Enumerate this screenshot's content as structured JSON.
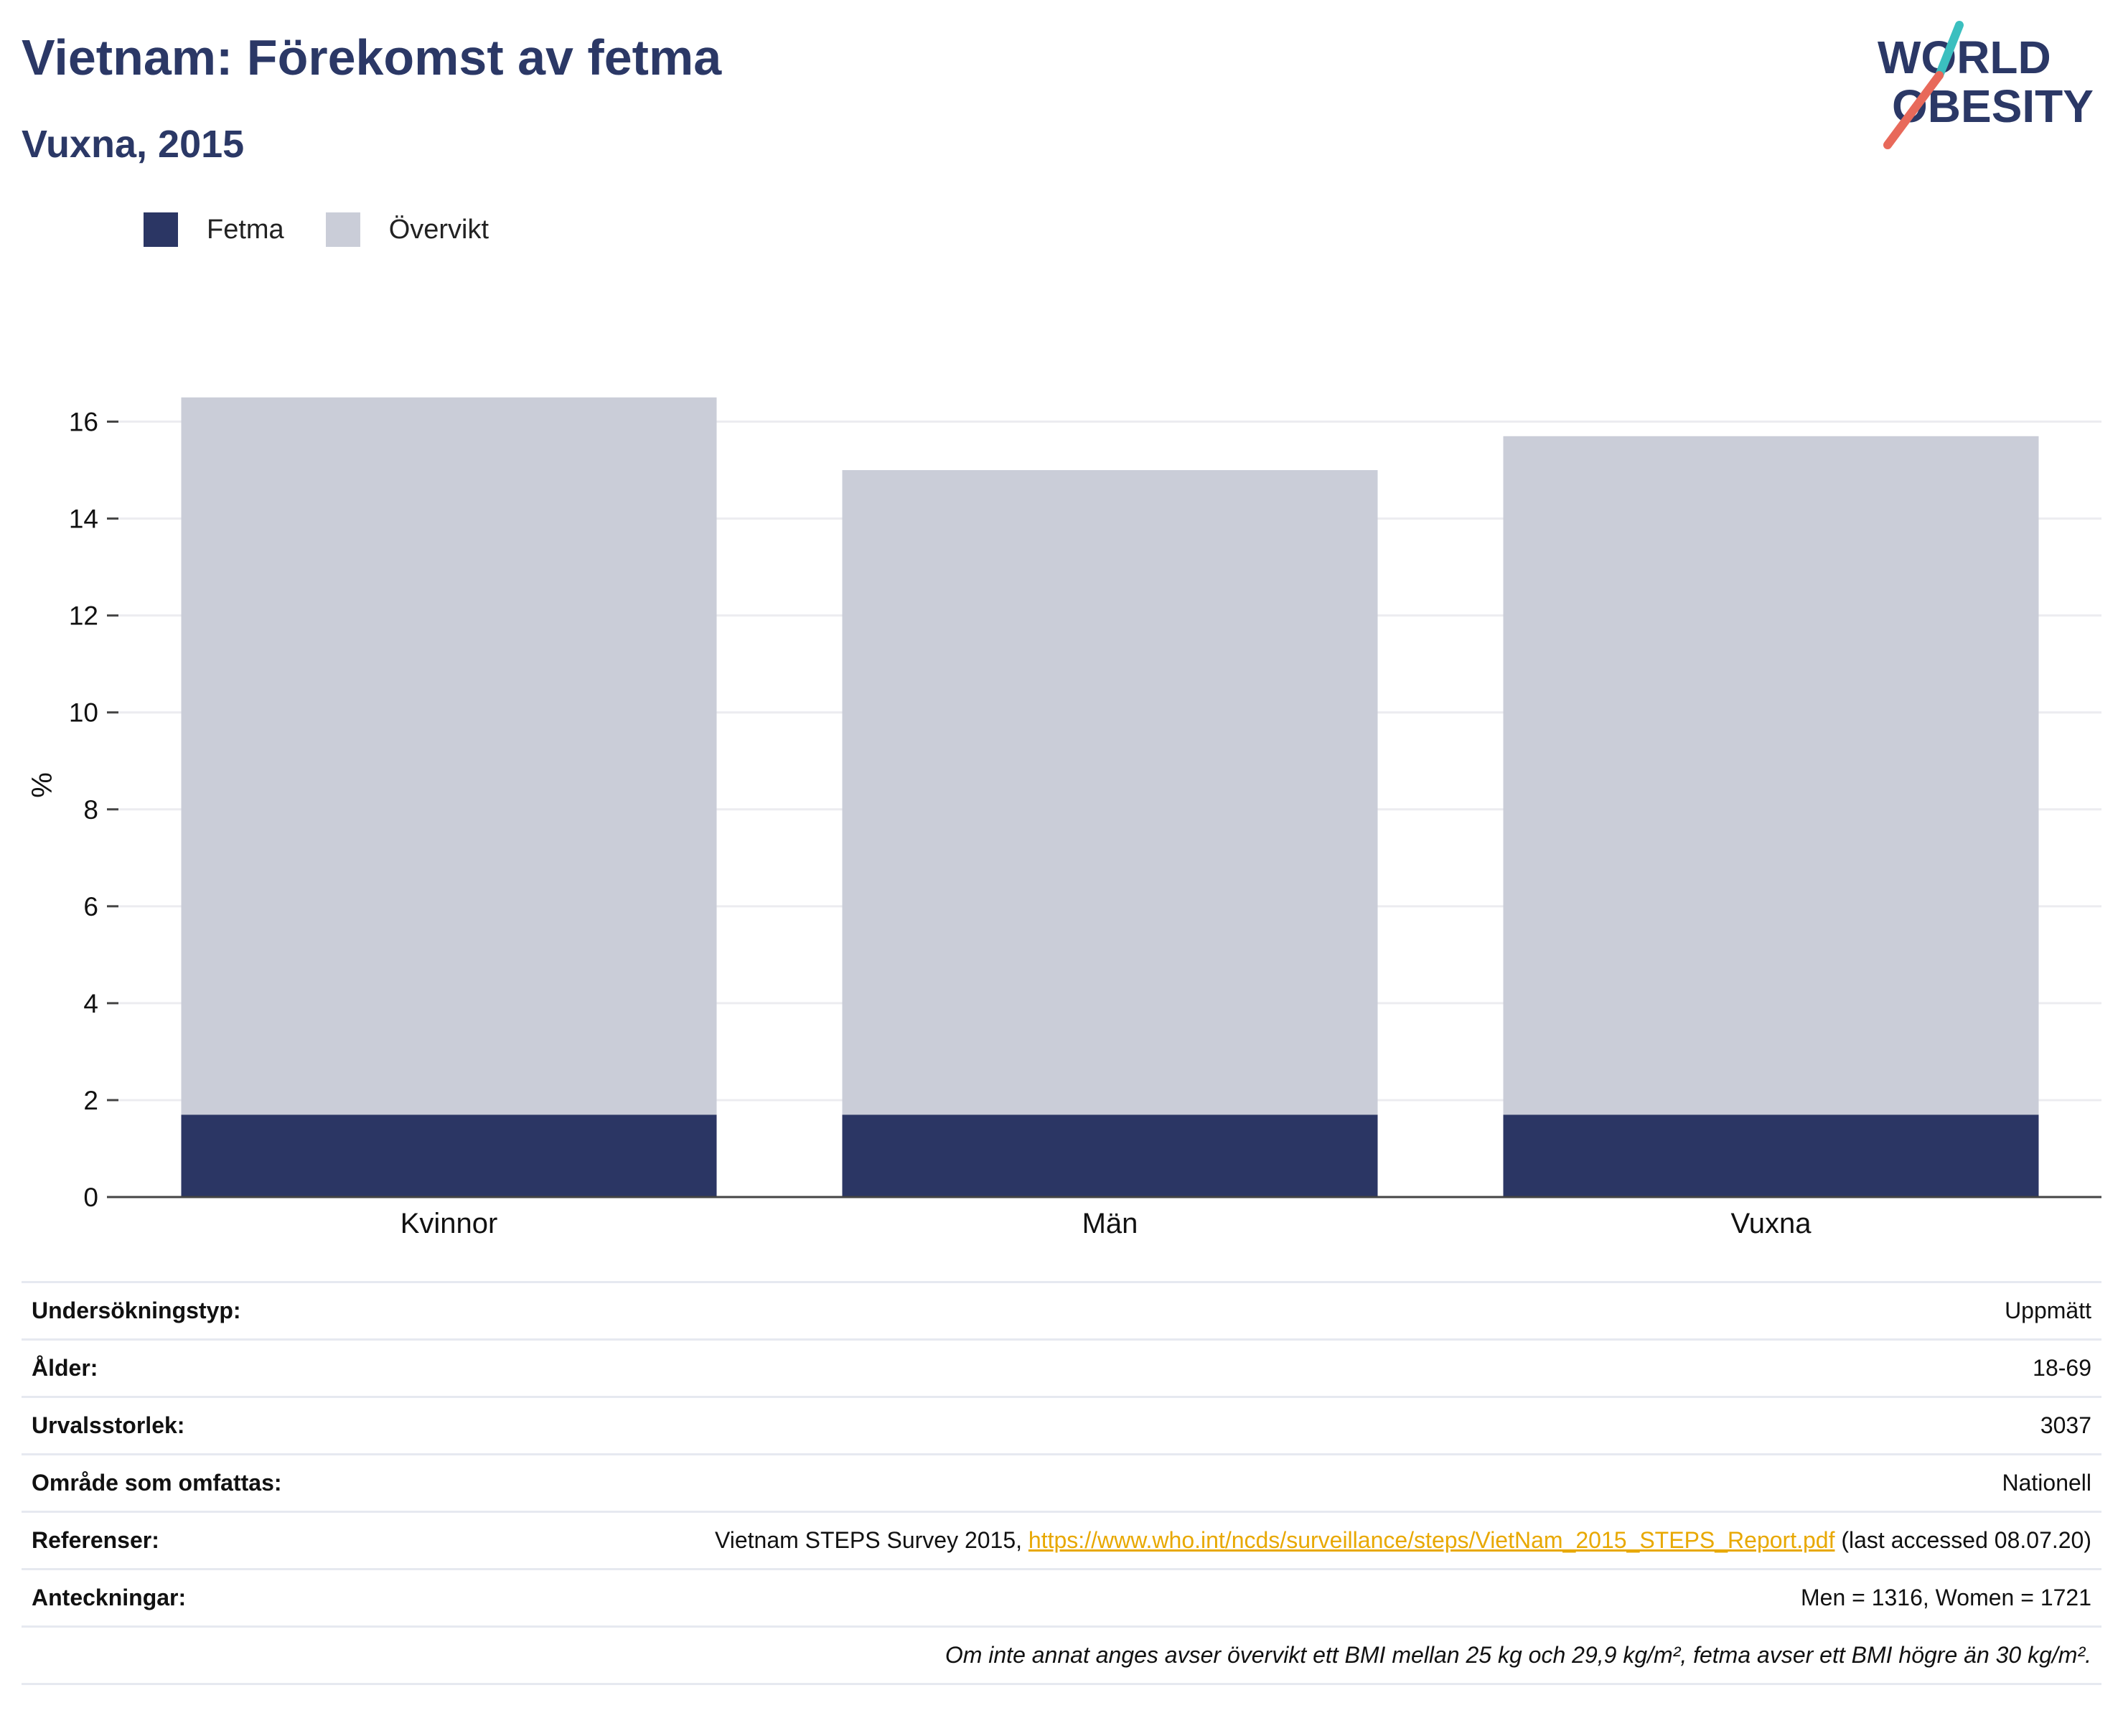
{
  "header": {
    "title": "Vietnam: Förekomst av fetma",
    "subtitle": "Vuxna, 2015"
  },
  "logo": {
    "line1": "WORLD",
    "line2": "OBESITY",
    "accent_teal": "#3bbfbf",
    "accent_coral": "#e8695a"
  },
  "legend": [
    {
      "label": "Fetma",
      "color": "#2b3664"
    },
    {
      "label": "Övervikt",
      "color": "#cacdd8"
    }
  ],
  "chart_data": {
    "type": "bar",
    "stacked": true,
    "categories": [
      "Kvinnor",
      "Män",
      "Vuxna"
    ],
    "series": [
      {
        "name": "Fetma",
        "values": [
          1.7,
          1.7,
          1.7
        ],
        "color": "#2b3664"
      },
      {
        "name": "Övervikt",
        "values": [
          14.8,
          13.3,
          14.0
        ],
        "color": "#cacdd8"
      }
    ],
    "ylabel": "%",
    "ylim": [
      0,
      17
    ],
    "yticks": [
      0,
      2,
      4,
      6,
      8,
      10,
      12,
      14,
      16
    ],
    "grid": true,
    "legend_position": "top-left"
  },
  "meta": {
    "survey_type": {
      "label": "Undersökningstyp:",
      "value": "Uppmätt"
    },
    "age": {
      "label": "Ålder:",
      "value": "18-69"
    },
    "sample_size": {
      "label": "Urvalsstorlek:",
      "value": "3037"
    },
    "area": {
      "label": "Område som omfattas:",
      "value": "Nationell"
    },
    "references": {
      "label": "Referenser:",
      "prefix": "Vietnam STEPS Survey 2015, ",
      "link": "https://www.who.int/ncds/surveillance/steps/VietNam_2015_STEPS_Report.pdf",
      "suffix": " (last accessed 08.07.20)"
    },
    "notes": {
      "label": "Anteckningar:",
      "value": "Men = 1316, Women = 1721"
    },
    "footnote": "Om inte annat anges avser övervikt ett BMI mellan 25 kg och 29,9 kg/m², fetma avser ett BMI högre än 30 kg/m²."
  }
}
